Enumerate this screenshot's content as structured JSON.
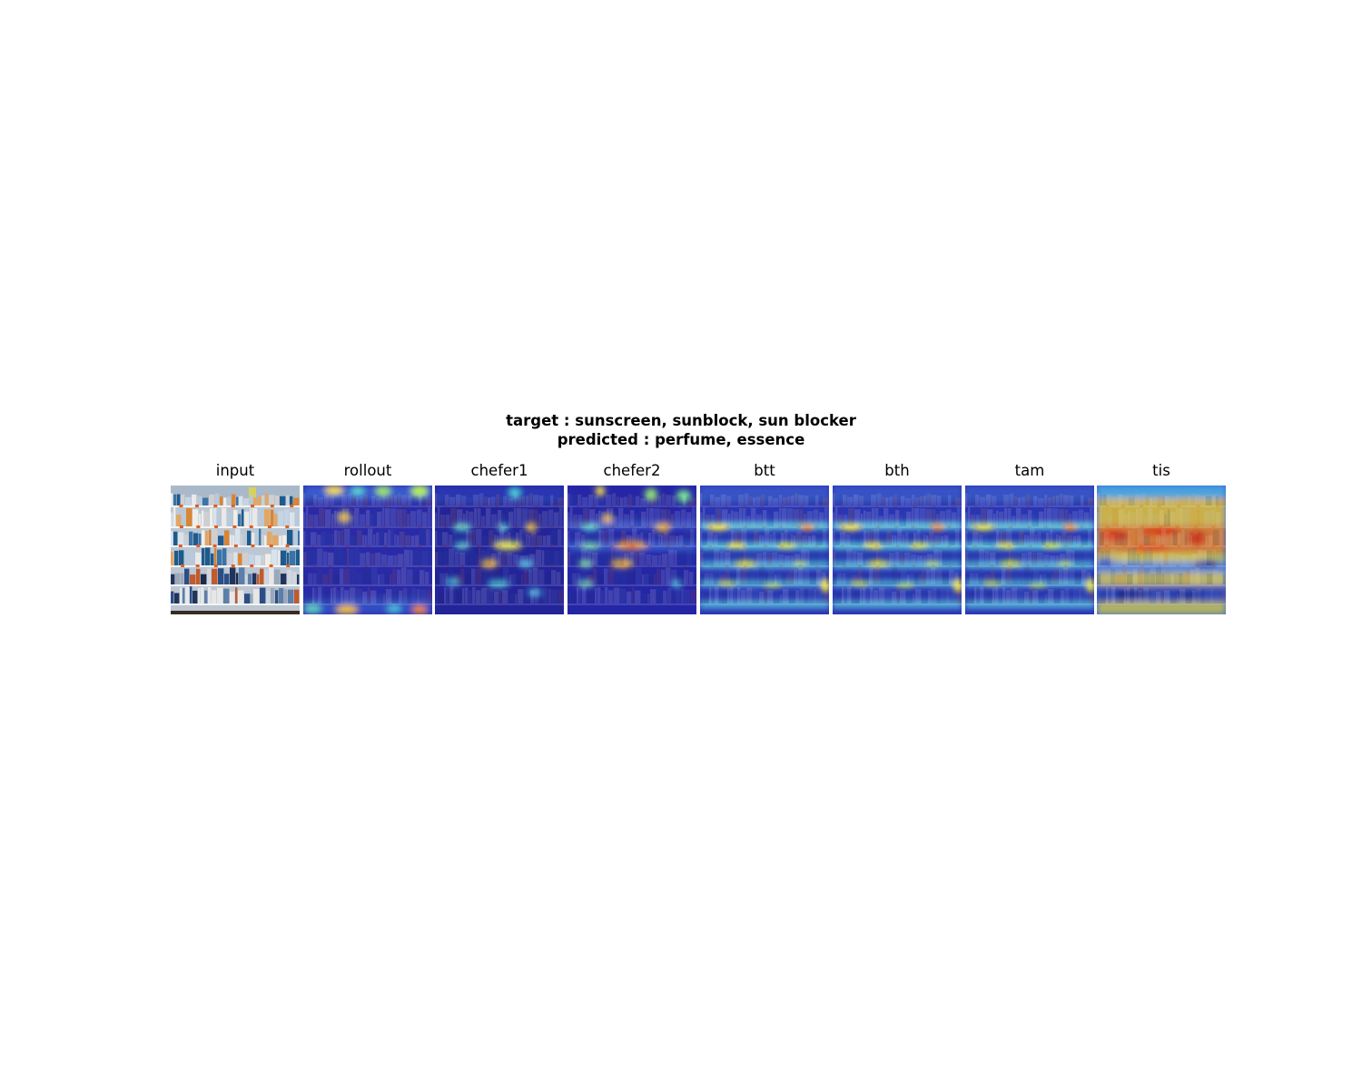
{
  "figure": {
    "title_line1": "target : sunscreen, sunblock, sun blocker",
    "title_line2": "predicted : perfume, essence"
  },
  "panels": [
    {
      "title": "input"
    },
    {
      "title": "rollout"
    },
    {
      "title": "chefer1"
    },
    {
      "title": "chefer2"
    },
    {
      "title": "btt"
    },
    {
      "title": "bth"
    },
    {
      "title": "tam"
    },
    {
      "title": "tis"
    }
  ]
}
